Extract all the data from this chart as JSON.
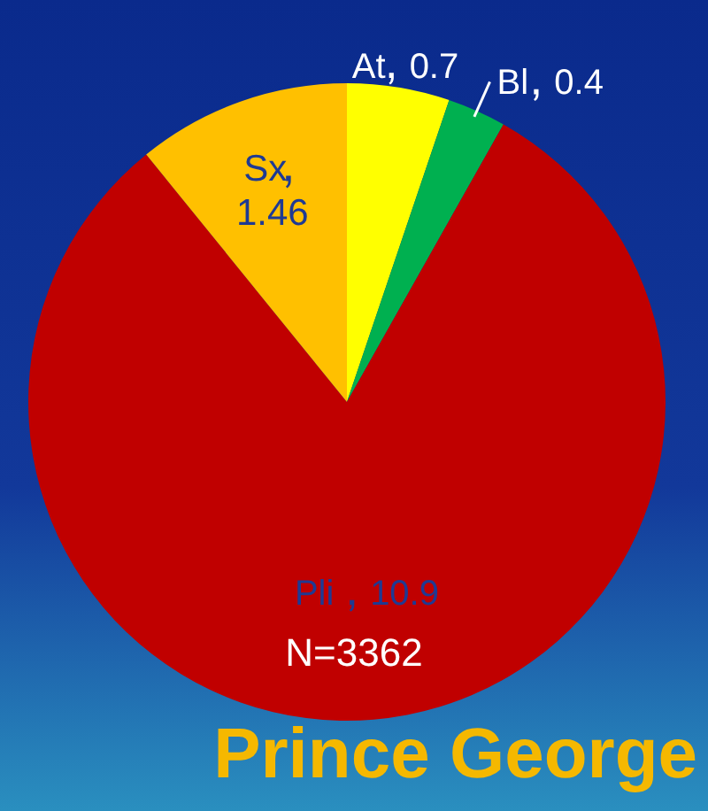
{
  "chart_data": {
    "type": "pie",
    "title": "Prince George",
    "categories": [
      "At",
      "Bl",
      "Pli",
      "Sx"
    ],
    "values": [
      0.7,
      0.4,
      10.9,
      1.46
    ],
    "colors": [
      "#ffff00",
      "#00b050",
      "#c00000",
      "#ffc000"
    ],
    "data_labels": true,
    "legend": false,
    "annotations": [
      "N=3362"
    ]
  }
}
